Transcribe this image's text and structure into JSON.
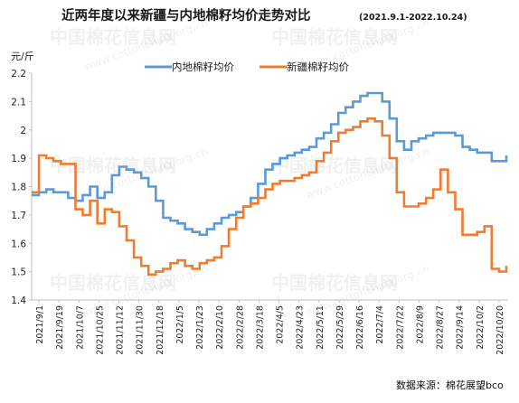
{
  "chart_data": {
    "type": "line",
    "title": "近两年度以来新疆与内地棉籽均价走势对比",
    "subtitle": "(2021.9.1-2022.10.24)",
    "ylabel": "元/斤",
    "ylim": [
      1.4,
      2.2
    ],
    "yticks": [
      "2.2",
      "2.1",
      "2",
      "1.9",
      "1.8",
      "1.7",
      "1.6",
      "1.5",
      "1.4"
    ],
    "xticks": [
      "2021/9/1",
      "2021/9/19",
      "2021/10/7",
      "2021/10/25",
      "2021/11/12",
      "2021/11/30",
      "2021/12/18",
      "2022/1/5",
      "2022/1/23",
      "2022/2/10",
      "2022/2/28",
      "2022/3/18",
      "2022/4/5",
      "2022/4/23",
      "2022/5/11",
      "2022/5/29",
      "2022/6/16",
      "2022/7/4",
      "2022/7/22",
      "2022/8/9",
      "2022/8/27",
      "2022/9/14",
      "2022/10/2",
      "2022/10/20"
    ],
    "grid": false,
    "legend_position": "top",
    "series": [
      {
        "name": "内地棉籽均价",
        "color": "#5b9bd5",
        "values": [
          [
            0,
            1.77
          ],
          [
            1,
            1.78
          ],
          [
            2,
            1.79
          ],
          [
            3,
            1.78
          ],
          [
            4,
            1.78
          ],
          [
            5,
            1.76
          ],
          [
            6,
            1.75
          ],
          [
            7,
            1.77
          ],
          [
            8,
            1.8
          ],
          [
            9,
            1.76
          ],
          [
            10,
            1.78
          ],
          [
            11,
            1.84
          ],
          [
            12,
            1.87
          ],
          [
            13,
            1.86
          ],
          [
            14,
            1.85
          ],
          [
            15,
            1.83
          ],
          [
            16,
            1.8
          ],
          [
            17,
            1.75
          ],
          [
            18,
            1.69
          ],
          [
            19,
            1.68
          ],
          [
            20,
            1.67
          ],
          [
            21,
            1.65
          ],
          [
            22,
            1.64
          ],
          [
            23,
            1.63
          ],
          [
            24,
            1.65
          ],
          [
            25,
            1.67
          ],
          [
            26,
            1.69
          ],
          [
            27,
            1.7
          ],
          [
            28,
            1.71
          ],
          [
            29,
            1.73
          ],
          [
            30,
            1.76
          ],
          [
            31,
            1.81
          ],
          [
            32,
            1.86
          ],
          [
            33,
            1.88
          ],
          [
            34,
            1.9
          ],
          [
            35,
            1.91
          ],
          [
            36,
            1.92
          ],
          [
            37,
            1.93
          ],
          [
            38,
            1.94
          ],
          [
            39,
            1.97
          ],
          [
            40,
            1.99
          ],
          [
            41,
            2.02
          ],
          [
            42,
            2.06
          ],
          [
            43,
            2.08
          ],
          [
            44,
            2.1
          ],
          [
            45,
            2.12
          ],
          [
            46,
            2.13
          ],
          [
            47,
            2.13
          ],
          [
            48,
            2.1
          ],
          [
            49,
            2.04
          ],
          [
            50,
            1.96
          ],
          [
            51,
            1.93
          ],
          [
            52,
            1.96
          ],
          [
            53,
            1.97
          ],
          [
            54,
            1.98
          ],
          [
            55,
            1.99
          ],
          [
            56,
            1.99
          ],
          [
            57,
            1.99
          ],
          [
            58,
            1.98
          ],
          [
            59,
            1.94
          ],
          [
            60,
            1.93
          ],
          [
            61,
            1.92
          ],
          [
            62,
            1.92
          ],
          [
            63,
            1.89
          ],
          [
            64,
            1.89
          ],
          [
            65,
            1.91
          ]
        ]
      },
      {
        "name": "新疆棉籽均价",
        "color": "#ed7d31",
        "values": [
          [
            0,
            1.78
          ],
          [
            1,
            1.91
          ],
          [
            2,
            1.9
          ],
          [
            3,
            1.89
          ],
          [
            4,
            1.88
          ],
          [
            5,
            1.88
          ],
          [
            6,
            1.72
          ],
          [
            7,
            1.7
          ],
          [
            8,
            1.75
          ],
          [
            9,
            1.67
          ],
          [
            10,
            1.72
          ],
          [
            11,
            1.71
          ],
          [
            12,
            1.66
          ],
          [
            13,
            1.61
          ],
          [
            14,
            1.55
          ],
          [
            15,
            1.52
          ],
          [
            16,
            1.49
          ],
          [
            17,
            1.5
          ],
          [
            18,
            1.51
          ],
          [
            19,
            1.53
          ],
          [
            20,
            1.54
          ],
          [
            21,
            1.52
          ],
          [
            22,
            1.51
          ],
          [
            23,
            1.53
          ],
          [
            24,
            1.54
          ],
          [
            25,
            1.55
          ],
          [
            26,
            1.59
          ],
          [
            27,
            1.65
          ],
          [
            28,
            1.69
          ],
          [
            29,
            1.73
          ],
          [
            30,
            1.74
          ],
          [
            31,
            1.76
          ],
          [
            32,
            1.79
          ],
          [
            33,
            1.81
          ],
          [
            34,
            1.82
          ],
          [
            35,
            1.82
          ],
          [
            36,
            1.83
          ],
          [
            37,
            1.84
          ],
          [
            38,
            1.85
          ],
          [
            39,
            1.89
          ],
          [
            40,
            1.92
          ],
          [
            41,
            1.96
          ],
          [
            42,
            1.99
          ],
          [
            43,
            2.0
          ],
          [
            44,
            2.01
          ],
          [
            45,
            2.03
          ],
          [
            46,
            2.04
          ],
          [
            47,
            2.03
          ],
          [
            48,
            1.98
          ],
          [
            49,
            1.9
          ],
          [
            50,
            1.78
          ],
          [
            51,
            1.73
          ],
          [
            52,
            1.73
          ],
          [
            53,
            1.74
          ],
          [
            54,
            1.76
          ],
          [
            55,
            1.79
          ],
          [
            56,
            1.86
          ],
          [
            57,
            1.78
          ],
          [
            58,
            1.72
          ],
          [
            59,
            1.63
          ],
          [
            60,
            1.63
          ],
          [
            61,
            1.64
          ],
          [
            62,
            1.66
          ],
          [
            63,
            1.51
          ],
          [
            64,
            1.5
          ],
          [
            65,
            1.52
          ]
        ]
      }
    ],
    "source_label": "数据来源：棉花展望bco"
  },
  "watermark_texts": [
    "中国棉花信息网",
    "www.cottonchina.org.cn"
  ]
}
